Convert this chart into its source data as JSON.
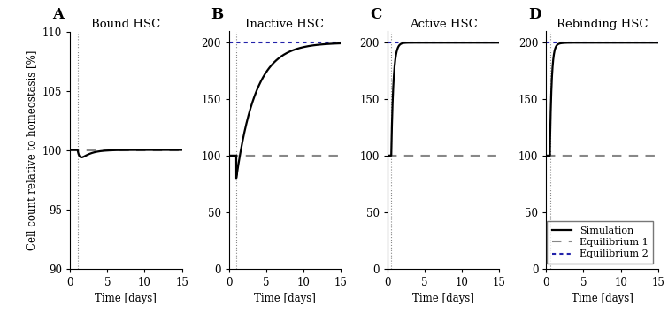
{
  "panels": [
    {
      "label": "A",
      "title": "Bound HSC",
      "ylim": [
        90,
        110
      ],
      "yticks": [
        90,
        95,
        100,
        105,
        110
      ],
      "eq1": 100,
      "eq2": null,
      "sim_type": "bound",
      "vline_x": 1.0
    },
    {
      "label": "B",
      "title": "Inactive HSC",
      "ylim": [
        0,
        210
      ],
      "yticks": [
        0,
        50,
        100,
        150,
        200
      ],
      "eq1": 100,
      "eq2": 200,
      "sim_type": "inactive",
      "vline_x": 1.0
    },
    {
      "label": "C",
      "title": "Active HSC",
      "ylim": [
        0,
        210
      ],
      "yticks": [
        0,
        50,
        100,
        150,
        200
      ],
      "eq1": 100,
      "eq2": 200,
      "sim_type": "active",
      "vline_x": 0.5
    },
    {
      "label": "D",
      "title": "Rebinding HSC",
      "ylim": [
        0,
        210
      ],
      "yticks": [
        0,
        50,
        100,
        150,
        200
      ],
      "eq1": 100,
      "eq2": 200,
      "sim_type": "rebinding",
      "vline_x": 0.5
    }
  ],
  "xlim": [
    0,
    15
  ],
  "xticks": [
    0,
    5,
    10,
    15
  ],
  "xlabel": "Time [days]",
  "ylabel": "Cell count relative to homeostasis [%]",
  "sim_color": "#000000",
  "eq1_color": "#888888",
  "eq2_color": "#2222AA",
  "sim_lw": 1.6,
  "eq1_lw": 1.5,
  "eq2_lw": 1.5,
  "legend_labels": [
    "Simulation",
    "Equilibrium 1",
    "Equilibrium 2"
  ]
}
